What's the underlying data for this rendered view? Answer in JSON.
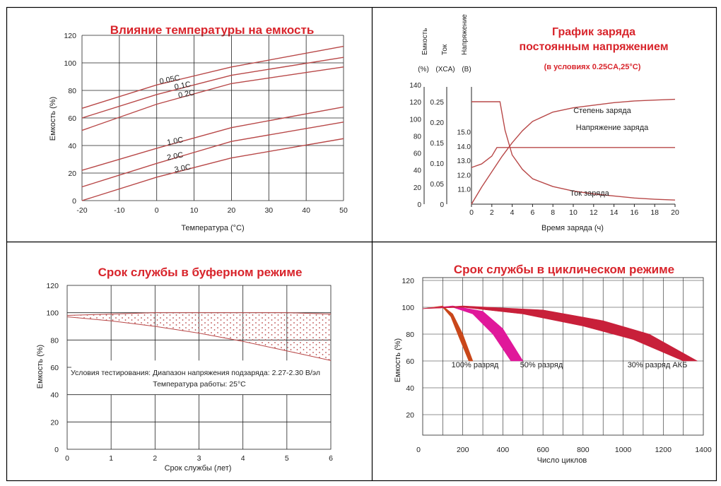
{
  "colors": {
    "accent": "#d8242b",
    "curve": "#b84848",
    "grid": "#222222",
    "axis_text": "#222222"
  },
  "chart_data": [
    {
      "type": "line",
      "title": "Влияние температуры на емкость",
      "xlabel": "Температура (°С)",
      "ylabel": "Емкость (%)",
      "xlim": [
        -20,
        50
      ],
      "ylim": [
        0,
        120
      ],
      "x_ticks": [
        "-20",
        "-10",
        "0",
        "10",
        "20",
        "30",
        "40",
        "50"
      ],
      "y_ticks": [
        "0",
        "20",
        "40",
        "60",
        "80",
        "100",
        "120"
      ],
      "series": [
        {
          "name": "0.05C",
          "x": [
            -20,
            0,
            20,
            50
          ],
          "y": [
            67,
            84,
            97,
            112
          ]
        },
        {
          "name": "0.1C",
          "x": [
            -20,
            0,
            20,
            50
          ],
          "y": [
            60,
            77,
            91,
            104
          ]
        },
        {
          "name": "0.2C",
          "x": [
            -20,
            0,
            20,
            50
          ],
          "y": [
            51,
            70,
            85,
            97
          ]
        },
        {
          "name": "1.0C",
          "x": [
            -20,
            0,
            20,
            50
          ],
          "y": [
            22,
            38,
            53,
            68
          ]
        },
        {
          "name": "2.0C",
          "x": [
            -20,
            0,
            20,
            50
          ],
          "y": [
            10,
            27,
            43,
            57
          ]
        },
        {
          "name": "3.0C",
          "x": [
            -20,
            0,
            20,
            50
          ],
          "y": [
            0,
            17,
            31,
            45
          ]
        }
      ]
    },
    {
      "type": "line",
      "title": "График заряда",
      "subtitle": "постоянным напряжением",
      "conditions": "(в условиях 0.25CA,25°C)",
      "xlabel": "Время заряда (ч)",
      "xlim": [
        0,
        20
      ],
      "x_ticks": [
        "0",
        "2",
        "4",
        "6",
        "8",
        "10",
        "12",
        "14",
        "16",
        "18",
        "20"
      ],
      "axes": [
        {
          "label": "Емкость",
          "unit": "(%)",
          "ticks": [
            "0",
            "20",
            "40",
            "60",
            "80",
            "100",
            "120",
            "140"
          ]
        },
        {
          "label": "Ток",
          "unit": "(XCA)",
          "ticks": [
            "0",
            "0.05",
            "0.10",
            "0.15",
            "0.20",
            "0.25"
          ]
        },
        {
          "label": "Напряжение",
          "unit": "(В)",
          "ticks": [
            "11.0",
            "12.0",
            "13.0",
            "14.0",
            "15.0"
          ]
        }
      ],
      "series": [
        {
          "name": "Степень заряда",
          "axis": "capacity",
          "x": [
            0,
            1,
            2,
            3,
            4,
            5,
            6,
            8,
            10,
            12,
            14,
            16,
            18,
            20
          ],
          "y": [
            0,
            20,
            38,
            56,
            72,
            86,
            97,
            108,
            113,
            116,
            119,
            121,
            122,
            123
          ]
        },
        {
          "name": "Напряжение заряда",
          "axis": "voltage",
          "x": [
            0,
            1,
            2,
            2.5,
            3,
            20
          ],
          "y": [
            12.5,
            12.75,
            13.3,
            13.9,
            13.9,
            13.9
          ]
        },
        {
          "name": "Ток заряда",
          "axis": "current",
          "x": [
            0,
            2.8,
            3.3,
            4,
            5,
            6,
            8,
            10,
            12,
            14,
            16,
            18,
            20
          ],
          "y": [
            0.25,
            0.25,
            0.18,
            0.12,
            0.085,
            0.062,
            0.043,
            0.032,
            0.025,
            0.02,
            0.015,
            0.012,
            0.01
          ]
        }
      ]
    },
    {
      "type": "area",
      "title": "Срок службы в буферном режиме",
      "xlabel": "Срок службы (лет)",
      "ylabel": "Емкость (%)",
      "xlim": [
        0,
        6
      ],
      "ylim": [
        0,
        120
      ],
      "x_ticks": [
        "0",
        "1",
        "2",
        "3",
        "4",
        "5",
        "6"
      ],
      "y_ticks": [
        "0",
        "20",
        "40",
        "60",
        "80",
        "100",
        "120"
      ],
      "band_upper": {
        "x": [
          0,
          1,
          2,
          3,
          4,
          5,
          6
        ],
        "y": [
          98,
          99,
          100,
          100,
          100,
          100,
          99
        ]
      },
      "band_lower": {
        "x": [
          0,
          1,
          2,
          3,
          4,
          5,
          6
        ],
        "y": [
          97,
          94,
          90,
          85,
          79,
          72,
          65
        ]
      },
      "note_line1": "Условия тестирования: Диапазон напряжения подзаряда: 2.27-2.30 В/эл",
      "note_line2": "Температура работы: 25°С"
    },
    {
      "type": "area",
      "title": "Срок службы в циклическом режиме",
      "xlabel": "Число циклов",
      "ylabel": "Емкость (%)",
      "xlim": [
        0,
        1400
      ],
      "ylim": [
        0,
        120
      ],
      "x_ticks": [
        "0",
        "200",
        "400",
        "600",
        "800",
        "1000",
        "1200",
        "1400"
      ],
      "y_ticks": [
        "20",
        "40",
        "60",
        "80",
        "100",
        "120"
      ],
      "series": [
        {
          "name": "100% разряд",
          "color": "#c9471a",
          "upper": {
            "x": [
              0,
              100,
              150,
              200,
              250
            ],
            "y": [
              99,
              101,
              95,
              80,
              60
            ]
          },
          "lower": {
            "x": [
              0,
              100,
              140,
              180,
              230
            ],
            "y": [
              99,
              100,
              93,
              78,
              60
            ]
          }
        },
        {
          "name": "50% разряд",
          "color": "#e0189a",
          "upper": {
            "x": [
              0,
              150,
              300,
              400,
              500
            ],
            "y": [
              99,
              101,
              97,
              84,
              60
            ]
          },
          "lower": {
            "x": [
              0,
              150,
              250,
              350,
              440
            ],
            "y": [
              99,
              100,
              95,
              80,
              60
            ]
          }
        },
        {
          "name": "30% разряд АКБ",
          "color": "#c8203a",
          "upper": {
            "x": [
              0,
              200,
              600,
              900,
              1130,
              1370
            ],
            "y": [
              99,
              101,
              98,
              90,
              80,
              60
            ]
          },
          "lower": {
            "x": [
              0,
              200,
              500,
              800,
              1050,
              1300
            ],
            "y": [
              99,
              100,
              95,
              86,
              76,
              60
            ]
          }
        }
      ]
    }
  ]
}
